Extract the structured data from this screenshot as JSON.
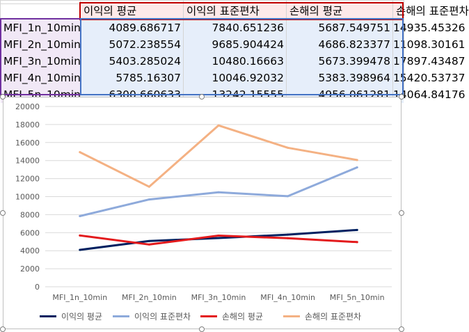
{
  "sheet": {
    "headers": [
      "이익의 평균",
      "이익의 표준편차",
      "손해의 평균",
      "손해의 표준편차"
    ],
    "rows": [
      {
        "label": "MFI_1n_10min",
        "values": [
          "4089.686717",
          "7840.651236",
          "5687.549751",
          "14935.45326"
        ]
      },
      {
        "label": "MFI_2n_10min",
        "values": [
          "5072.238554",
          "9685.904424",
          "4686.823377",
          "11098.30161"
        ]
      },
      {
        "label": "MFI_3n_10min",
        "values": [
          "5403.285024",
          "10480.16663",
          "5673.399478",
          "17897.43487"
        ]
      },
      {
        "label": "MFI_4n_10min",
        "values": [
          "5785.16307",
          "10046.92032",
          "5383.398964",
          "15420.53737"
        ]
      },
      {
        "label": "MFI_5n_10min",
        "values": [
          "6300.660633",
          "13242.15555",
          "4956.061281",
          "14064.84176"
        ]
      }
    ],
    "colors": {
      "header_fill": "#fde9e9",
      "label_fill": "#f1e8f6",
      "value_fill": "#e6eefa",
      "header_border": "#c00000",
      "label_border": "#7030a0",
      "value_border": "#4472c4"
    }
  },
  "chart_data": {
    "type": "line",
    "categories": [
      "MFI_1n_10min",
      "MFI_2n_10min",
      "MFI_3n_10min",
      "MFI_4n_10min",
      "MFI_5n_10min"
    ],
    "series": [
      {
        "name": "이익의 평균",
        "color": "#002060",
        "values": [
          4089.686717,
          5072.238554,
          5403.285024,
          5785.16307,
          6300.660633
        ]
      },
      {
        "name": "이익의 표준편차",
        "color": "#8eaadb",
        "values": [
          7840.651236,
          9685.904424,
          10480.16663,
          10046.92032,
          13242.15555
        ]
      },
      {
        "name": "손해의 평균",
        "color": "#e31a1c",
        "values": [
          5687.549751,
          4686.823377,
          5673.399478,
          5383.398964,
          4956.061281
        ]
      },
      {
        "name": "손해의 표준편차",
        "color": "#f4b183",
        "values": [
          14935.45326,
          11098.30161,
          17897.43487,
          15420.53737,
          14064.84176
        ]
      }
    ],
    "title": "",
    "xlabel": "",
    "ylabel": "",
    "ylim": [
      0,
      20000
    ],
    "yticks": [
      0,
      2000,
      4000,
      6000,
      8000,
      10000,
      12000,
      14000,
      16000,
      18000,
      20000
    ],
    "grid": true,
    "legend": "bottom"
  }
}
